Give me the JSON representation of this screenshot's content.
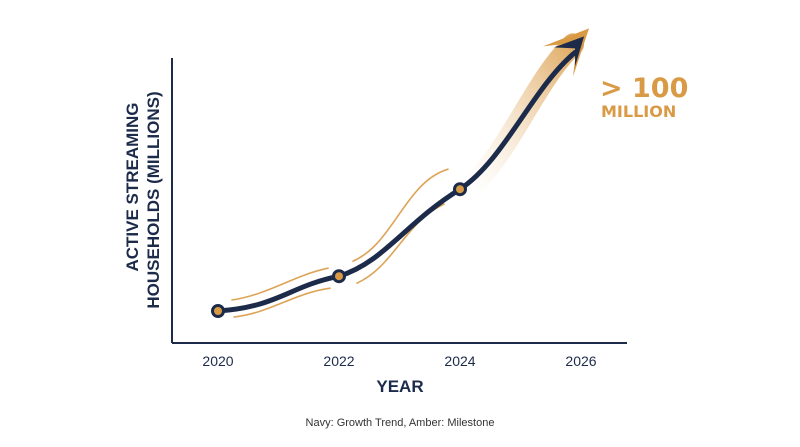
{
  "chart_data": {
    "type": "line",
    "title": "",
    "xlabel": "YEAR",
    "ylabel_line1": "ACTIVE STREAMING",
    "ylabel_line2": "HOUSEHOLDS (MILLIONS)",
    "x_ticks": [
      "2020",
      "2022",
      "2024",
      "2026"
    ],
    "xlim": [
      2019.5,
      2026.8
    ],
    "ylim": [
      0,
      110
    ],
    "series": [
      {
        "x": [
          2020,
          2022,
          2024
        ],
        "y": [
          10,
          22,
          52
        ]
      }
    ],
    "trend_end": {
      "x": 2026.1,
      "y": 104
    },
    "milestone": {
      "value": "> 100",
      "unit": "MILLION"
    },
    "footnote": "Navy: Growth Trend, Amber: Milestone",
    "colors": {
      "navy": "#1c2b4a",
      "amber": "#d99a45",
      "amber_light": "#f1d4ad"
    }
  }
}
